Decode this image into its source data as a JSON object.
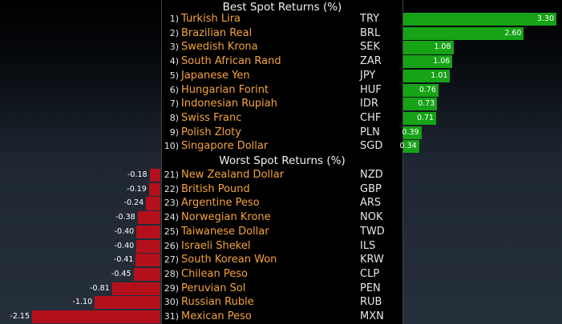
{
  "chart_data": {
    "type": "bar",
    "best": {
      "title": "Best Spot Returns (%)",
      "rows": [
        {
          "rank": "1)",
          "name": "Turkish Lira",
          "code": "TRY",
          "value": 3.3,
          "label": "3.30"
        },
        {
          "rank": "2)",
          "name": "Brazilian Real",
          "code": "BRL",
          "value": 2.6,
          "label": "2.60"
        },
        {
          "rank": "3)",
          "name": "Swedish Krona",
          "code": "SEK",
          "value": 1.08,
          "label": "1.08"
        },
        {
          "rank": "4)",
          "name": "South African Rand",
          "code": "ZAR",
          "value": 1.06,
          "label": "1.06"
        },
        {
          "rank": "5)",
          "name": "Japanese Yen",
          "code": "JPY",
          "value": 1.01,
          "label": "1.01"
        },
        {
          "rank": "6)",
          "name": "Hungarian Forint",
          "code": "HUF",
          "value": 0.76,
          "label": "0.76"
        },
        {
          "rank": "7)",
          "name": "Indonesian Rupiah",
          "code": "IDR",
          "value": 0.73,
          "label": "0.73"
        },
        {
          "rank": "8)",
          "name": "Swiss Franc",
          "code": "CHF",
          "value": 0.71,
          "label": "0.71"
        },
        {
          "rank": "9)",
          "name": "Polish Zloty",
          "code": "PLN",
          "value": 0.39,
          "label": "0.39"
        },
        {
          "rank": "10)",
          "name": "Singapore Dollar",
          "code": "SGD",
          "value": 0.34,
          "label": "0.34"
        }
      ]
    },
    "worst": {
      "title": "Worst Spot Returns (%)",
      "rows": [
        {
          "rank": "21)",
          "name": "New Zealand Dollar",
          "code": "NZD",
          "value": -0.18,
          "label": "-0.18"
        },
        {
          "rank": "22)",
          "name": "British Pound",
          "code": "GBP",
          "value": -0.19,
          "label": "-0.19"
        },
        {
          "rank": "23)",
          "name": "Argentine Peso",
          "code": "ARS",
          "value": -0.24,
          "label": "-0.24"
        },
        {
          "rank": "24)",
          "name": "Norwegian Krone",
          "code": "NOK",
          "value": -0.38,
          "label": "-0.38"
        },
        {
          "rank": "25)",
          "name": "Taiwanese Dollar",
          "code": "TWD",
          "value": -0.4,
          "label": "-0.40"
        },
        {
          "rank": "26)",
          "name": "Israeli Shekel",
          "code": "ILS",
          "value": -0.4,
          "label": "-0.40"
        },
        {
          "rank": "27)",
          "name": "South Korean Won",
          "code": "KRW",
          "value": -0.41,
          "label": "-0.41"
        },
        {
          "rank": "28)",
          "name": "Chilean Peso",
          "code": "CLP",
          "value": -0.45,
          "label": "-0.45"
        },
        {
          "rank": "29)",
          "name": "Peruvian Sol",
          "code": "PEN",
          "value": -0.81,
          "label": "-0.81"
        },
        {
          "rank": "30)",
          "name": "Russian Ruble",
          "code": "RUB",
          "value": -1.1,
          "label": "-1.10"
        },
        {
          "rank": "31)",
          "name": "Mexican Peso",
          "code": "MXN",
          "value": -2.15,
          "label": "-2.15"
        }
      ]
    },
    "colors": {
      "positive": "#16a316",
      "negative": "#b3101c",
      "name_text": "#f6a33a"
    }
  }
}
